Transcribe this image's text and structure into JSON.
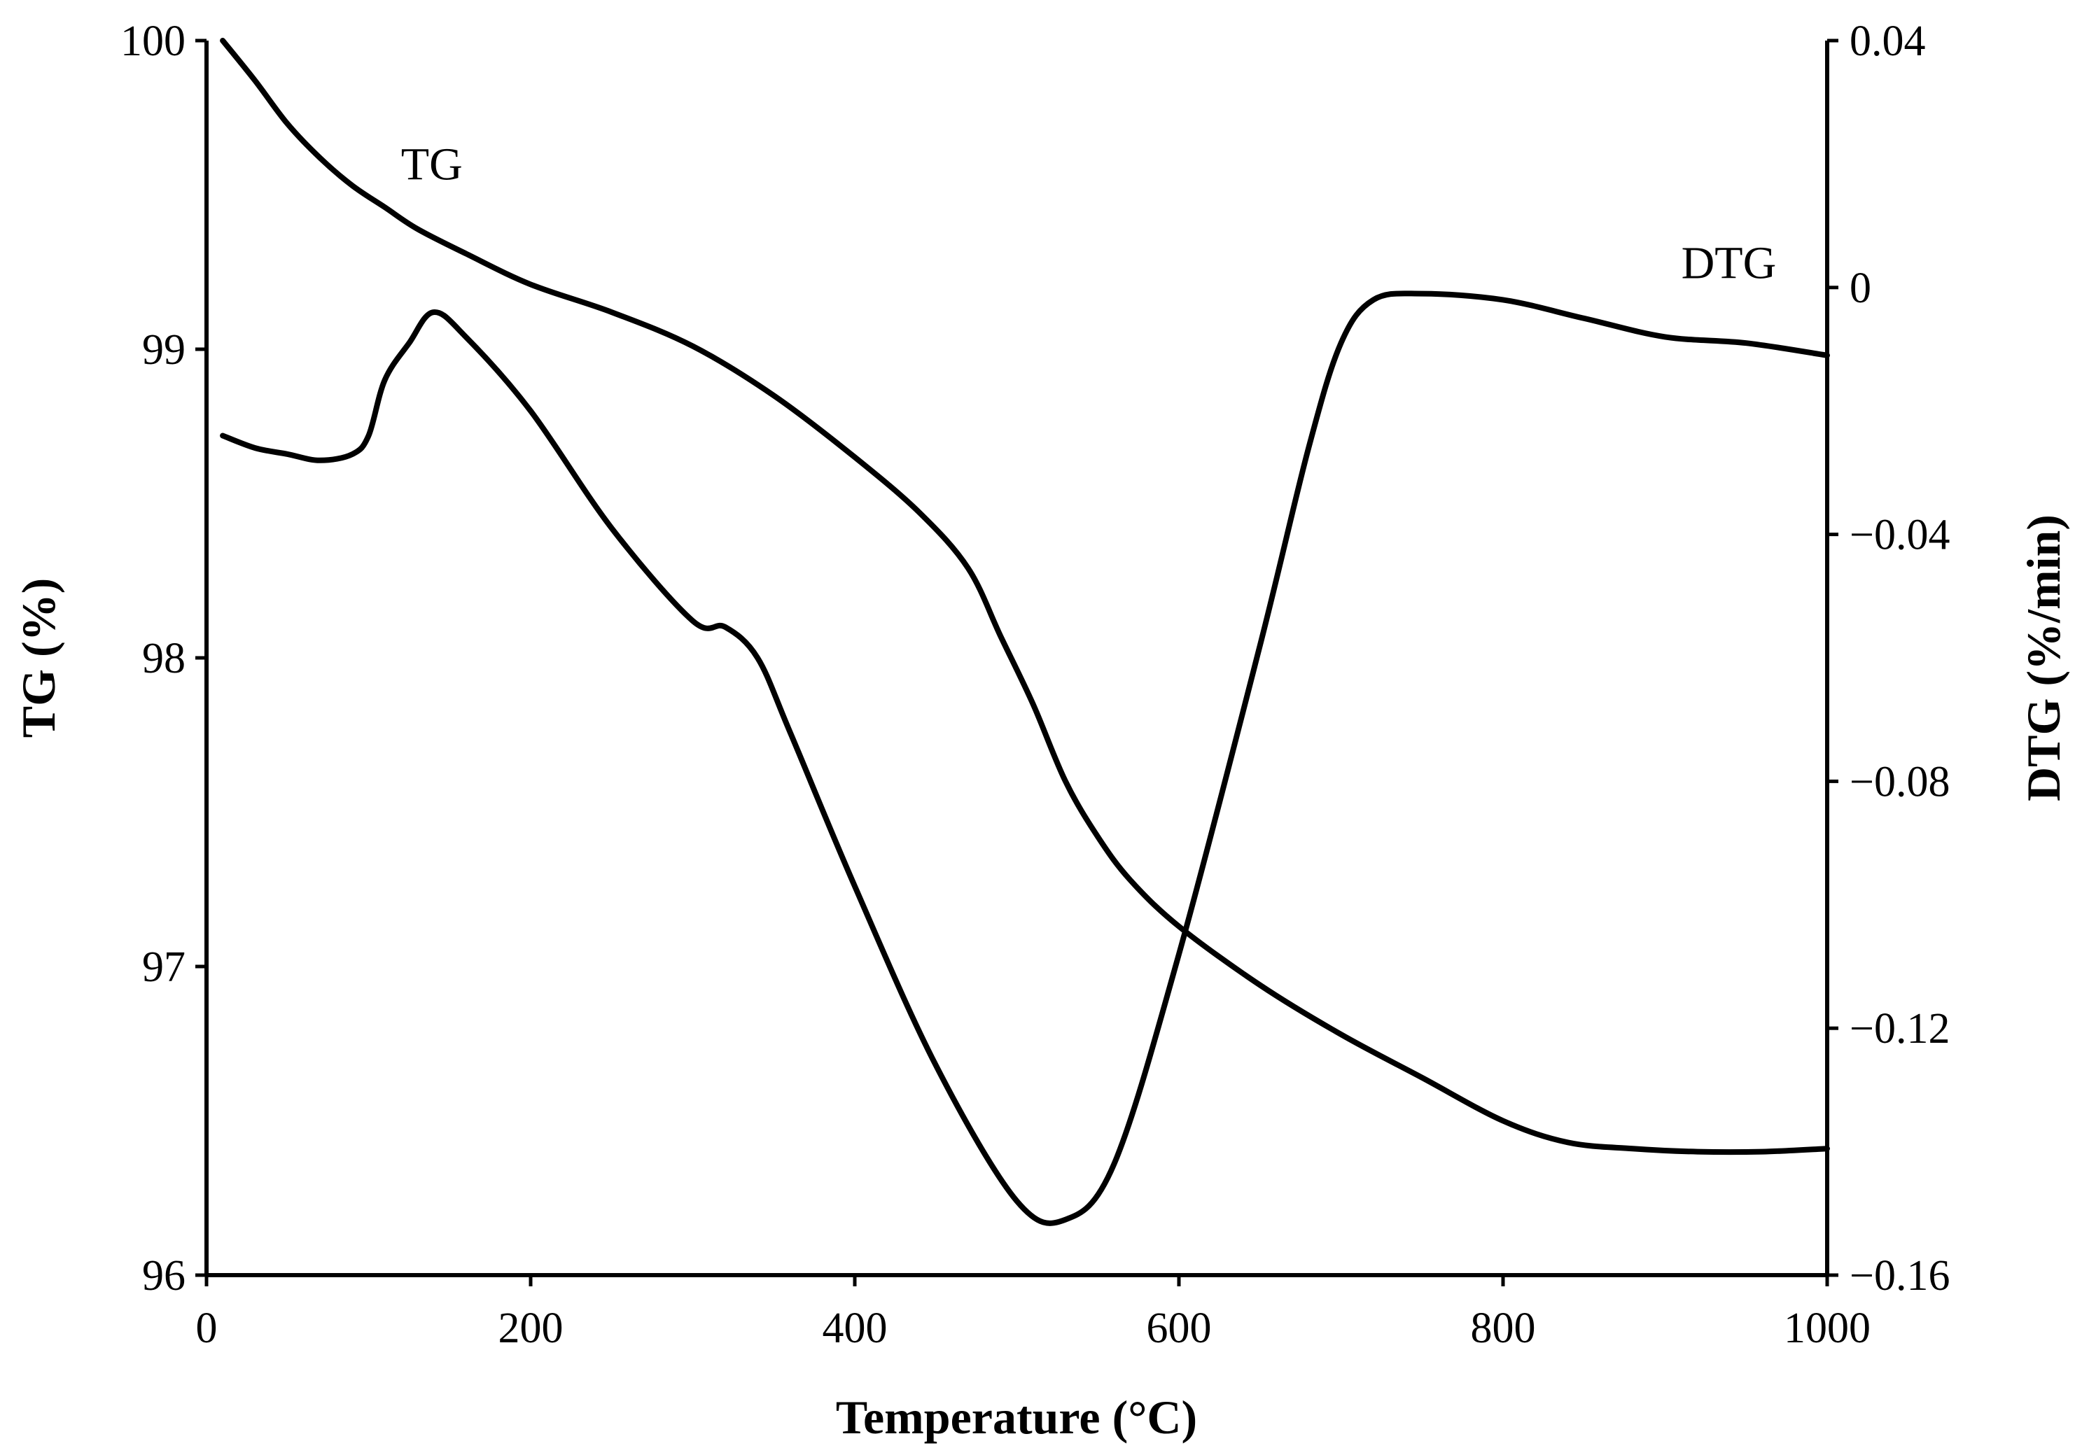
{
  "chart_data": {
    "type": "line",
    "title": "",
    "xlabel": "Temperature (°C)",
    "ylabel_left": "TG (%)",
    "ylabel_right": "DTG (%/min)",
    "xlim": [
      0,
      1000
    ],
    "ylim_left": [
      96,
      100
    ],
    "ylim_right": [
      -0.16,
      0.04
    ],
    "x_ticks": [
      "0",
      "200",
      "400",
      "600",
      "800",
      "1000"
    ],
    "y_left_ticks": [
      "96",
      "97",
      "98",
      "99",
      "100"
    ],
    "y_right_ticks": [
      "−0.16",
      "−0.12",
      "−0.08",
      "−0.04",
      "0",
      "0.04"
    ],
    "grid": false,
    "colors": {
      "line": "#000000",
      "background": "#ffffff"
    },
    "series": [
      {
        "name": "TG",
        "axis": "left",
        "x": [
          10,
          30,
          50,
          70,
          90,
          110,
          130,
          160,
          200,
          250,
          300,
          350,
          400,
          440,
          470,
          490,
          510,
          530,
          550,
          570,
          600,
          650,
          700,
          750,
          800,
          840,
          880,
          920,
          960,
          1000
        ],
        "values": [
          100.0,
          99.87,
          99.73,
          99.62,
          99.53,
          99.46,
          99.39,
          99.31,
          99.21,
          99.12,
          99.01,
          98.85,
          98.65,
          98.47,
          98.29,
          98.07,
          97.85,
          97.6,
          97.42,
          97.28,
          97.13,
          96.94,
          96.78,
          96.64,
          96.5,
          96.43,
          96.41,
          96.4,
          96.4,
          96.41
        ]
      },
      {
        "name": "DTG",
        "axis": "right",
        "x": [
          10,
          30,
          50,
          70,
          90,
          100,
          110,
          125,
          140,
          160,
          200,
          250,
          300,
          320,
          340,
          360,
          400,
          450,
          500,
          530,
          560,
          600,
          650,
          680,
          700,
          720,
          750,
          800,
          850,
          900,
          950,
          1000
        ],
        "values": [
          -0.024,
          -0.026,
          -0.027,
          -0.028,
          -0.027,
          -0.024,
          -0.015,
          -0.009,
          -0.004,
          -0.008,
          -0.02,
          -0.039,
          -0.054,
          -0.055,
          -0.06,
          -0.072,
          -0.097,
          -0.126,
          -0.148,
          -0.151,
          -0.142,
          -0.108,
          -0.058,
          -0.026,
          -0.009,
          -0.002,
          -0.001,
          -0.002,
          -0.005,
          -0.008,
          -0.009,
          -0.011
        ]
      }
    ],
    "annotations": [
      {
        "text": "TG",
        "series": "TG",
        "x": 120,
        "y": 99.55
      },
      {
        "text": "DTG",
        "series": "DTG",
        "x": 910,
        "y": 0.0015
      }
    ]
  }
}
